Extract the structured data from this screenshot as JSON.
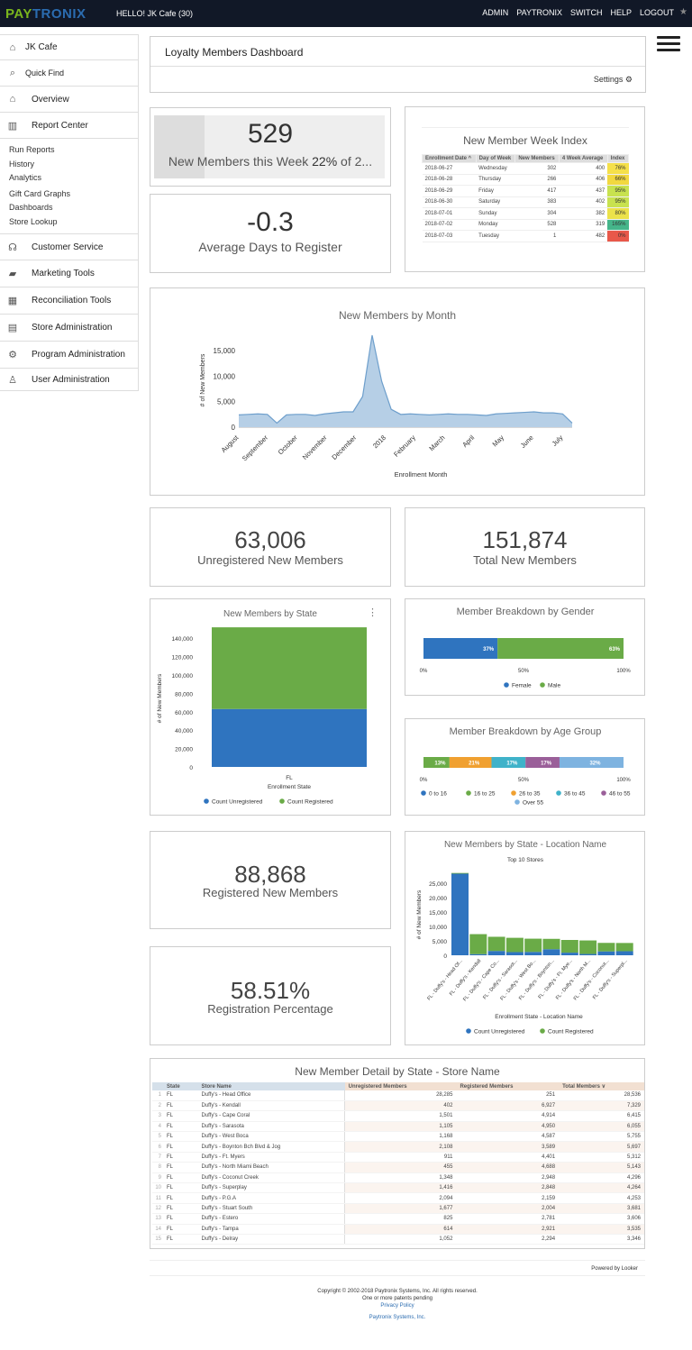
{
  "topbar": {
    "logo_part1": "PAY",
    "logo_part2": "TRONIX",
    "greeting": "HELLO! JK Cafe (30)",
    "nav": [
      "ADMIN",
      "PAYTRONIX",
      "SWITCH",
      "HELP",
      "LOGOUT"
    ]
  },
  "sidebar": {
    "items": [
      {
        "label": "JK Cafe",
        "icon": "home-icon"
      },
      {
        "label": "Quick Find",
        "icon": "search-icon"
      },
      {
        "label": "Overview",
        "icon": "home-icon"
      },
      {
        "label": "Report Center",
        "icon": "bar-chart-icon"
      }
    ],
    "subitems": [
      "Run Reports",
      "History",
      "Analytics",
      "Gift Card Graphs",
      "Dashboards",
      "Store Lookup"
    ],
    "items2": [
      {
        "label": "Customer Service",
        "icon": "headset-icon"
      },
      {
        "label": "Marketing Tools",
        "icon": "chat-icon"
      },
      {
        "label": "Reconciliation Tools",
        "icon": "calculator-icon"
      },
      {
        "label": "Store Administration",
        "icon": "store-icon"
      },
      {
        "label": "Program Administration",
        "icon": "gear-icon"
      },
      {
        "label": "User Administration",
        "icon": "user-icon"
      }
    ]
  },
  "dashboard": {
    "title": "Loyalty Members Dashboard",
    "settings_label": "Settings"
  },
  "tiles": {
    "new_week": {
      "value": "529",
      "label_pre": "New Members this Week ",
      "label_pct": "22%",
      "label_post": " of 2..."
    },
    "avg_days": {
      "value": "-0.3",
      "label": "Average Days to Register"
    },
    "unregistered": {
      "value": "63,006",
      "label": "Unregistered New Members"
    },
    "total": {
      "value": "151,874",
      "label": "Total New Members"
    },
    "registered": {
      "value": "88,868",
      "label": "Registered New Members"
    },
    "reg_pct": {
      "value": "58.51%",
      "label": "Registration Percentage"
    }
  },
  "week_index": {
    "title": "New Member Week Index",
    "headers": [
      "Enrollment Date ^",
      "Day of Week",
      "New Members",
      "4 Week Average",
      "Index"
    ],
    "rows": [
      [
        "2018-06-27",
        "Wednesday",
        "302",
        "400",
        "76%"
      ],
      [
        "2018-06-28",
        "Thursday",
        "266",
        "406",
        "66%"
      ],
      [
        "2018-06-29",
        "Friday",
        "417",
        "437",
        "95%"
      ],
      [
        "2018-06-30",
        "Saturday",
        "383",
        "402",
        "95%"
      ],
      [
        "2018-07-01",
        "Sunday",
        "304",
        "382",
        "80%"
      ],
      [
        "2018-07-02",
        "Monday",
        "528",
        "319",
        "165%"
      ],
      [
        "2018-07-03",
        "Tuesday",
        "1",
        "482",
        "0%"
      ]
    ],
    "index_colors": [
      "#f5e04a",
      "#f2d83f",
      "#c8e24f",
      "#c8e24f",
      "#ece24a",
      "#45b58a",
      "#e8584a"
    ]
  },
  "chart_data": [
    {
      "type": "area",
      "title": "New Members by Month",
      "xlabel": "Enrollment Month",
      "ylabel": "# of New Members",
      "x_ticks": [
        "August",
        "September",
        "October",
        "November",
        "December",
        "2018",
        "February",
        "March",
        "April",
        "May",
        "June",
        "July"
      ],
      "y_ticks": [
        "0",
        "5,000",
        "10,000",
        "15,000"
      ],
      "ylim": [
        0,
        18000
      ],
      "values": [
        2400,
        2500,
        2600,
        2500,
        800,
        2400,
        2500,
        2500,
        2300,
        2600,
        2800,
        3000,
        3000,
        6000,
        18000,
        9000,
        3500,
        2500,
        2600,
        2500,
        2400,
        2500,
        2600,
        2500,
        2500,
        2400,
        2300,
        2600,
        2700,
        2800,
        2900,
        3000,
        2800,
        2800,
        2600,
        800
      ],
      "color": "#6e9fcc"
    },
    {
      "type": "bar",
      "title": "New Members by State",
      "xlabel": "Enrollment State",
      "ylabel": "# of New Members",
      "categories": [
        "FL"
      ],
      "y_ticks": [
        "0",
        "20,000",
        "40,000",
        "60,000",
        "80,000",
        "100,000",
        "120,000",
        "140,000"
      ],
      "ylim": [
        0,
        150000
      ],
      "series": [
        {
          "name": "Count Unregistered",
          "values": [
            63006
          ],
          "color": "#2f74bf"
        },
        {
          "name": "Count Registered",
          "values": [
            88868
          ],
          "color": "#6aab47"
        }
      ]
    },
    {
      "type": "bar",
      "title": "Member Breakdown by Gender",
      "x_ticks": [
        "0%",
        "50%",
        "100%"
      ],
      "series": [
        {
          "name": "Female",
          "values": [
            37
          ],
          "label": "37%",
          "color": "#2f74bf"
        },
        {
          "name": "Male",
          "values": [
            63
          ],
          "label": "63%",
          "color": "#6aab47"
        }
      ]
    },
    {
      "type": "bar",
      "title": "Member Breakdown by Age Group",
      "x_ticks": [
        "0%",
        "50%",
        "100%"
      ],
      "series": [
        {
          "name": "0 to 16",
          "values": [
            0
          ],
          "label": "",
          "color": "#2f74bf"
        },
        {
          "name": "16 to 25",
          "values": [
            13
          ],
          "label": "13%",
          "color": "#6aab47"
        },
        {
          "name": "26 to 35",
          "values": [
            21
          ],
          "label": "21%",
          "color": "#f0a030"
        },
        {
          "name": "36 to 45",
          "values": [
            17
          ],
          "label": "17%",
          "color": "#3fb2c9"
        },
        {
          "name": "46 to 55",
          "values": [
            17
          ],
          "label": "17%",
          "color": "#9a5f99"
        },
        {
          "name": "Over 55",
          "values": [
            32
          ],
          "label": "32%",
          "color": "#7eb3e0"
        }
      ]
    },
    {
      "type": "bar",
      "title": "New Members by State - Location Name",
      "subtitle": "Top 10 Stores",
      "xlabel": "Enrollment State - Location Name",
      "ylabel": "# of New Members",
      "categories": [
        "FL - Duffy's - Head Of...",
        "FL - Duffy's - Kendall",
        "FL - Duffy's - Cape Co...",
        "FL - Duffy's - Sarasot...",
        "FL - Duffy's - West Bo...",
        "FL - Duffy's - Boynton...",
        "FL - Duffy's - Ft. Mye...",
        "FL - Duffy's - North M...",
        "FL - Duffy's - Coconut...",
        "FL - Duffy's - Superpl..."
      ],
      "y_ticks": [
        "0",
        "5,000",
        "10,000",
        "15,000",
        "20,000",
        "25,000"
      ],
      "ylim": [
        0,
        30000
      ],
      "series": [
        {
          "name": "Count Unregistered",
          "values": [
            28285,
            402,
            1501,
            1105,
            1168,
            2108,
            911,
            455,
            1348,
            1416
          ],
          "color": "#2f74bf"
        },
        {
          "name": "Count Registered",
          "values": [
            251,
            6927,
            4914,
            4950,
            4587,
            3589,
            4401,
            4688,
            2948,
            2848
          ],
          "color": "#6aab47"
        }
      ]
    }
  ],
  "detail": {
    "title": "New Member Detail by State - Store Name",
    "headers": [
      "State",
      "Store Name",
      "Unregistered Members",
      "Registered Members",
      "Total Members ∨"
    ],
    "rows": [
      [
        "1",
        "FL",
        "Duffy's - Head Office",
        "28,285",
        "251",
        "28,536"
      ],
      [
        "2",
        "FL",
        "Duffy's - Kendall",
        "402",
        "6,927",
        "7,329"
      ],
      [
        "3",
        "FL",
        "Duffy's - Cape Coral",
        "1,501",
        "4,914",
        "6,415"
      ],
      [
        "4",
        "FL",
        "Duffy's - Sarasota",
        "1,105",
        "4,950",
        "6,055"
      ],
      [
        "5",
        "FL",
        "Duffy's - West Boca",
        "1,168",
        "4,587",
        "5,755"
      ],
      [
        "6",
        "FL",
        "Duffy's - Boynton Bch Blvd & Jog",
        "2,108",
        "3,589",
        "5,697"
      ],
      [
        "7",
        "FL",
        "Duffy's - Ft. Myers",
        "911",
        "4,401",
        "5,312"
      ],
      [
        "8",
        "FL",
        "Duffy's - North Miami Beach",
        "455",
        "4,688",
        "5,143"
      ],
      [
        "9",
        "FL",
        "Duffy's - Coconut Creek",
        "1,348",
        "2,948",
        "4,296"
      ],
      [
        "10",
        "FL",
        "Duffy's - Superplay",
        "1,416",
        "2,848",
        "4,264"
      ],
      [
        "11",
        "FL",
        "Duffy's - P.G.A",
        "2,094",
        "2,159",
        "4,253"
      ],
      [
        "12",
        "FL",
        "Duffy's - Stuart South",
        "1,677",
        "2,004",
        "3,681"
      ],
      [
        "13",
        "FL",
        "Duffy's - Estero",
        "825",
        "2,781",
        "3,606"
      ],
      [
        "14",
        "FL",
        "Duffy's - Tampa",
        "614",
        "2,921",
        "3,535"
      ],
      [
        "15",
        "FL",
        "Duffy's - Delray",
        "1,052",
        "2,294",
        "3,346"
      ]
    ]
  },
  "footer": {
    "powered": "Powered by Looker",
    "copyright": "Copyright © 2002-2018 Paytronix Systems, Inc. All rights reserved.",
    "patents": "One or more patents pending",
    "privacy": "Privacy Policy",
    "company": "Paytronix Systems, Inc."
  }
}
